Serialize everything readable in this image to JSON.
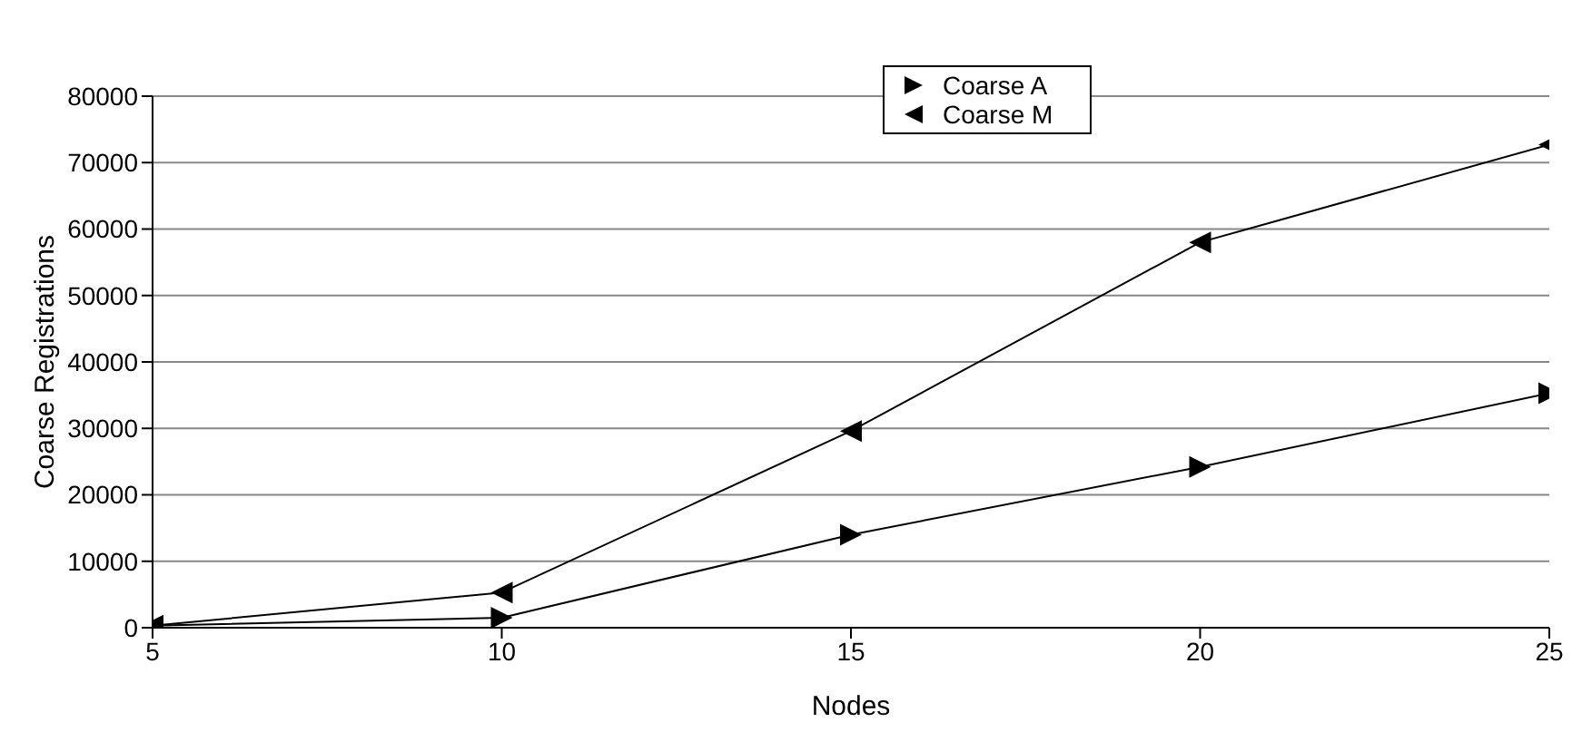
{
  "chart_data": {
    "type": "line",
    "xlabel": "Nodes",
    "ylabel": "Coarse Registrations",
    "x": [
      5,
      10,
      15,
      20,
      25
    ],
    "series": [
      {
        "name": "Coarse A",
        "color": "#000000",
        "marker": "triangle-right",
        "values": [
          300,
          1500,
          14000,
          24200,
          35300
        ]
      },
      {
        "name": "Coarse M",
        "color": "#000000",
        "marker": "triangle-left",
        "values": [
          300,
          5300,
          29600,
          58000,
          72700
        ]
      }
    ],
    "xlim": [
      5,
      25
    ],
    "xticks": [
      5,
      10,
      15,
      20,
      25
    ],
    "ylim": [
      0,
      80000
    ],
    "yticks": [
      0,
      10000,
      20000,
      30000,
      40000,
      50000,
      60000,
      70000,
      80000
    ],
    "grid": "y",
    "legend": "top right",
    "line_style": "solid"
  }
}
